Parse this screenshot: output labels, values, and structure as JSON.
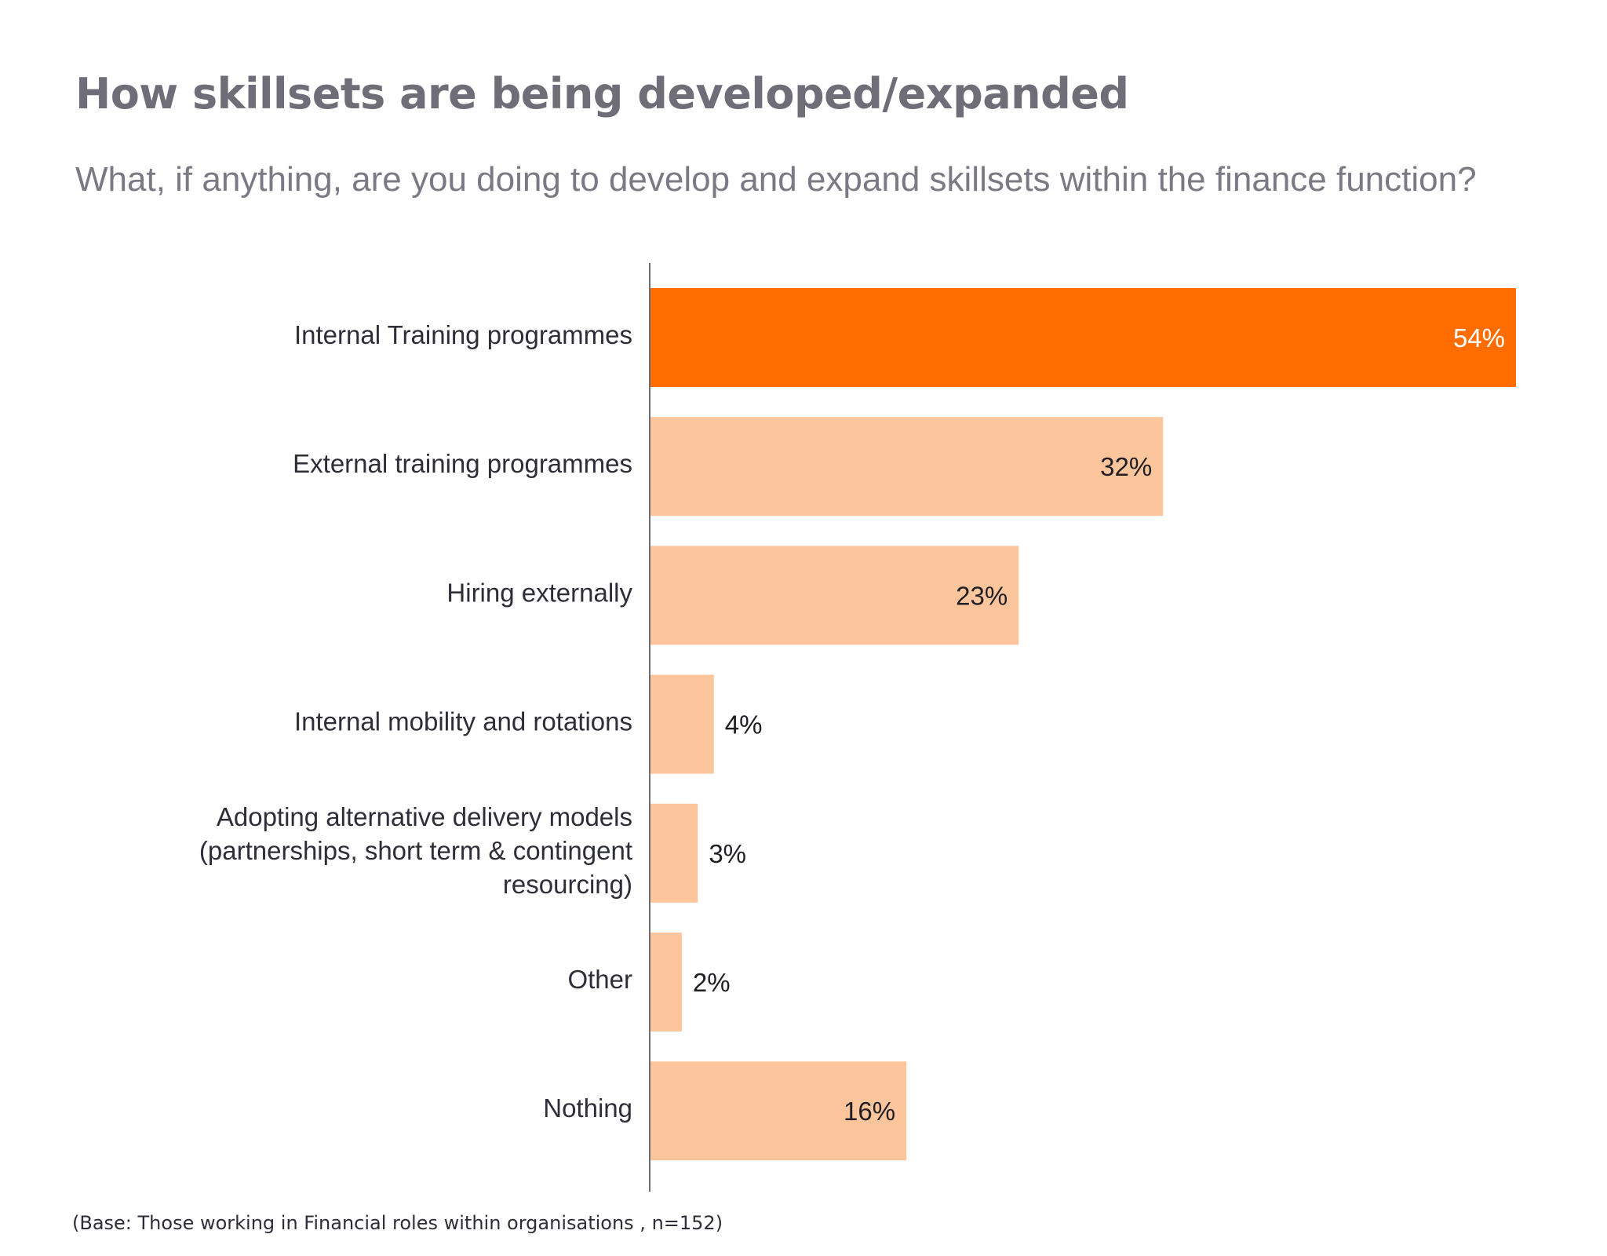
{
  "header": {
    "title": "How skillsets are being developed/expanded",
    "subtitle": "What, if anything,  are you doing to develop and expand skillsets within the finance function?"
  },
  "footnote": "(Base: Those working in Financial roles within organisations , n=152)",
  "colors": {
    "highlight": "#FF6D00",
    "default": "#FDC59C",
    "axis": "#6e6d78",
    "label_dark": "#1e1e24",
    "label_light": "#ffffff"
  },
  "chart_data": {
    "type": "bar",
    "orientation": "horizontal",
    "title": "How skillsets are being developed/expanded",
    "subtitle": "What, if anything,  are you doing to develop and expand skillsets within the finance function?",
    "xlabel": "",
    "ylabel": "",
    "unit": "%",
    "xlim": [
      0,
      54
    ],
    "grid": false,
    "legend": "none",
    "categories": [
      [
        "Internal Training programmes"
      ],
      [
        "External training programmes"
      ],
      [
        "Hiring externally"
      ],
      [
        "Internal mobility and rotations"
      ],
      [
        "Adopting alternative delivery models",
        "(partnerships, short term & contingent",
        "resourcing)"
      ],
      [
        "Other"
      ],
      [
        "Nothing"
      ]
    ],
    "values": [
      54,
      32,
      23,
      4,
      3,
      2,
      16
    ],
    "value_labels": [
      "54%",
      "32%",
      "23%",
      "4%",
      "3%",
      "2%",
      "16%"
    ],
    "highlighted_index": 0
  }
}
